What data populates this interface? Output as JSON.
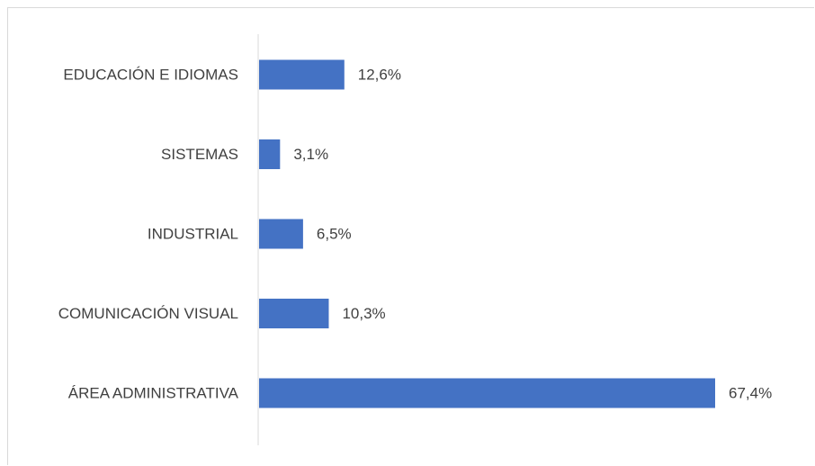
{
  "chart_data": {
    "type": "bar",
    "orientation": "horizontal",
    "categories": [
      "EDUCACIÓN E IDIOMAS",
      "SISTEMAS",
      "INDUSTRIAL",
      "COMUNICACIÓN VISUAL",
      "ÁREA ADMINISTRATIVA"
    ],
    "values": [
      12.6,
      3.1,
      6.5,
      10.3,
      67.4
    ],
    "value_labels": [
      "12,6%",
      "3,1%",
      "6,5%",
      "10,3%",
      "67,4%"
    ],
    "unit": "%",
    "bar_color": "#4472c4",
    "xlim": [
      0,
      67.4
    ],
    "grid": false,
    "legend": "none"
  }
}
